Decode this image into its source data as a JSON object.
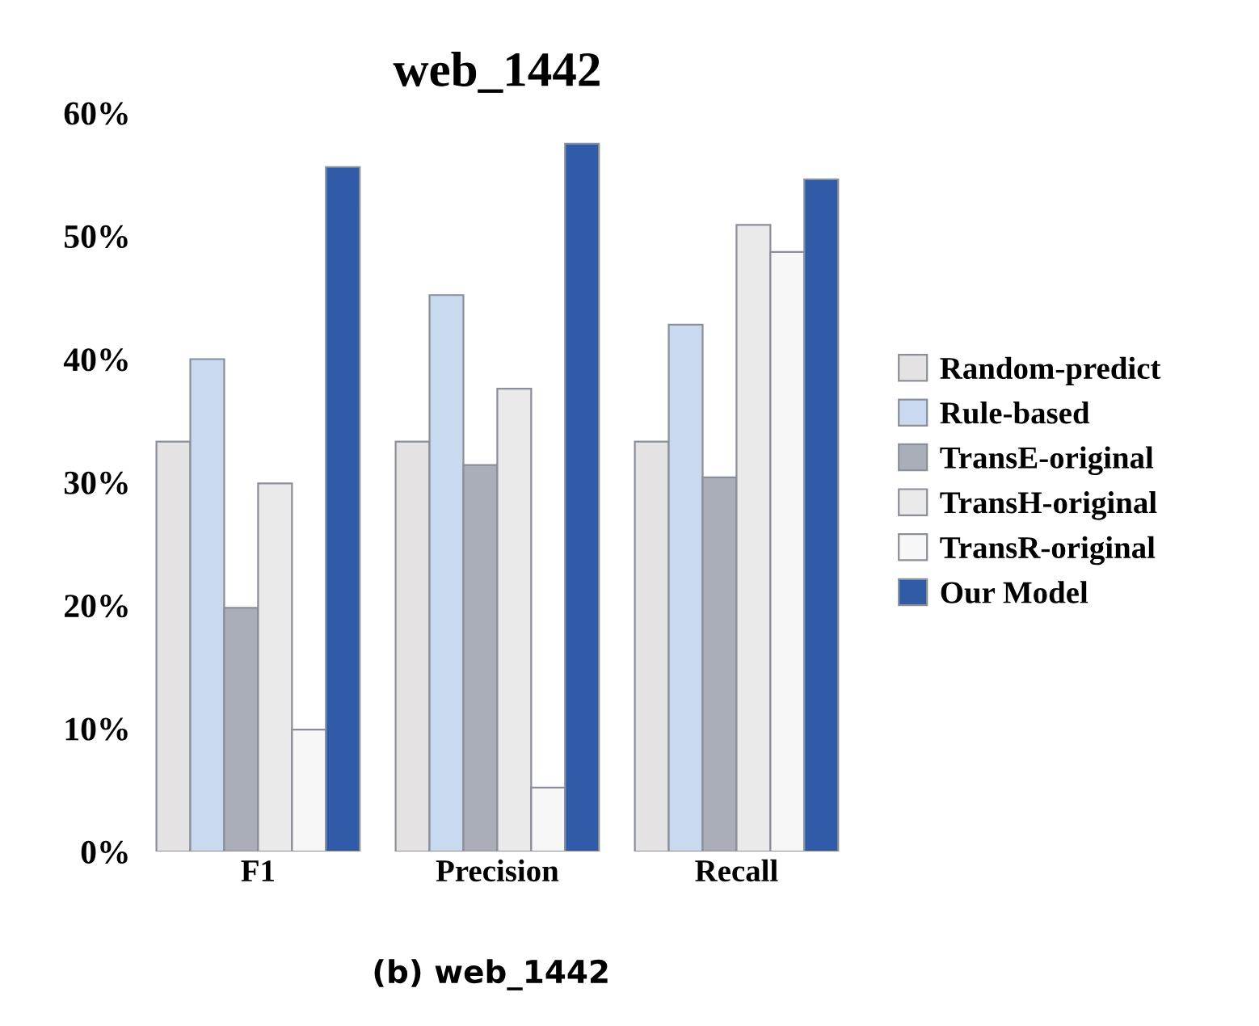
{
  "chart_data": {
    "type": "bar",
    "title": "web_1442",
    "categories": [
      "F1",
      "Precision",
      "Recall"
    ],
    "series": [
      {
        "name": "Random-predict",
        "color": "#e4e2e2",
        "values": [
          33.3,
          33.3,
          33.3
        ]
      },
      {
        "name": "Rule-based",
        "color": "#c9d9ef",
        "values": [
          40.0,
          45.2,
          42.8
        ]
      },
      {
        "name": "TransE-original",
        "color": "#a9aeb8",
        "values": [
          19.8,
          31.4,
          30.4
        ]
      },
      {
        "name": "TransH-original",
        "color": "#eaeaea",
        "values": [
          29.9,
          37.6,
          50.9
        ]
      },
      {
        "name": "TransR-original",
        "color": "#f7f7f7",
        "values": [
          9.9,
          5.2,
          48.7
        ]
      },
      {
        "name": "Our Model",
        "color": "#2f5ba8",
        "values": [
          55.6,
          57.5,
          54.6
        ]
      }
    ],
    "ylim": [
      0,
      60
    ],
    "yticks": [
      {
        "value": 0,
        "label": "0%"
      },
      {
        "value": 10,
        "label": "10%"
      },
      {
        "value": 20,
        "label": "20%"
      },
      {
        "value": 30,
        "label": "30%"
      },
      {
        "value": 40,
        "label": "40%"
      },
      {
        "value": 50,
        "label": "50%"
      },
      {
        "value": 60,
        "label": "60%"
      }
    ],
    "legend": "right",
    "grid": false,
    "annotations": [
      "(b) web_1442"
    ]
  }
}
